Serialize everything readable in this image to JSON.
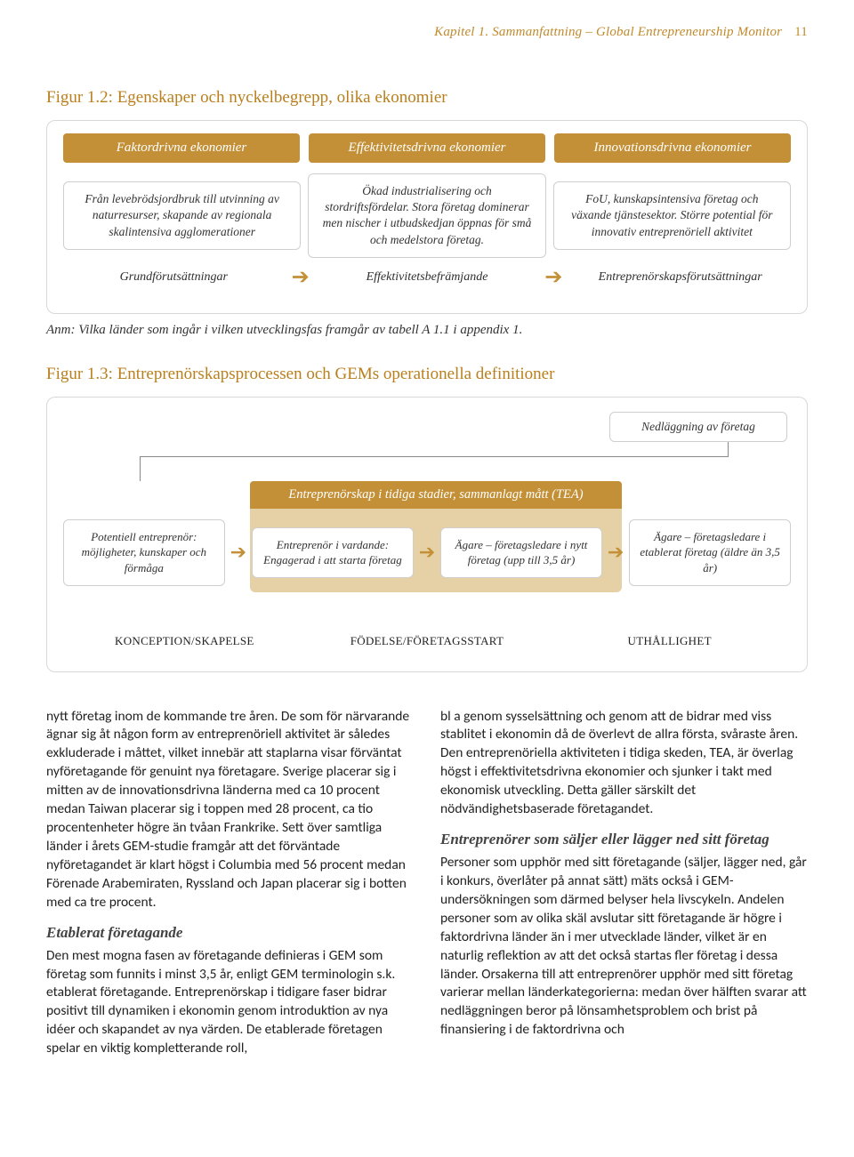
{
  "header": {
    "running": "Kapitel 1. Sammanfattning – Global Entrepreneurship Monitor",
    "page_number": "11"
  },
  "fig12": {
    "title": "Figur 1.2: Egenskaper och nyckelbegrepp, olika ekonomier",
    "columns": [
      "Faktordrivna ekonomier",
      "Effektivitetsdrivna ekonomier",
      "Innovationsdrivna ekonomier"
    ],
    "boxes": [
      "Från levebrödsjordbruk till utvinning av naturresurser, skapande av regionala skalintensiva agglomerationer",
      "Ökad industrialisering och stordriftsfördelar. Stora företag dominerar men nischer i utbudskedjan öppnas för små och medelstora företag.",
      "FoU, kunskapsintensiva företag och växande tjänstesektor. Större potential för innovativ entreprenöriell aktivitet"
    ],
    "labels": [
      "Grundförutsättningar",
      "Effektivitetsbefrämjande",
      "Entreprenörskapsförutsättningar"
    ]
  },
  "anm": "Anm: Vilka länder som ingår i vilken utvecklingsfas framgår av tabell A 1.1 i appendix 1.",
  "fig13": {
    "title": "Figur 1.3: Entreprenörskapsprocessen och GEMs operationella definitioner",
    "closure": "Nedläggning av företag",
    "tea_banner": "Entreprenörskap i tidiga stadier, sammanlagt mått (TEA)",
    "stages": [
      "Potentiell entreprenör:\nmöjligheter, kunskaper och förmåga",
      "Entreprenör i vardande:\nEngagerad i att starta företag",
      "Ägare – företagsledare i nytt företag (upp till 3,5 år)",
      "Ägare – företagsledare i etablerat företag (äldre än 3,5 år)"
    ],
    "phases": [
      "KONCEPTION/SKAPELSE",
      "FÖDELSE/FÖRETAGSSTART",
      "UTHÅLLIGHET"
    ]
  },
  "body": {
    "col1": {
      "p1": "nytt företag inom de kommande tre åren. De som för närvarande ägnar sig åt någon form av entreprenöriell aktivitet är således exkluderade i måttet, vilket innebär att staplarna visar förväntat nyföretagande för genuint nya företagare. Sverige placerar sig i mitten av de innovationsdrivna länderna med ca 10 procent medan Taiwan placerar sig i toppen med 28 procent, ca tio procentenheter högre än tvåan Frankrike. Sett över samtliga länder i årets GEM-studie framgår att det förväntade nyföretagandet är klart högst i Columbia med 56 procent medan Förenade Arabemiraten, Ryssland och Japan placerar sig i botten med ca tre procent.",
      "h1": "Etablerat företagande",
      "p2": "Den mest mogna fasen av företagande definieras i GEM som företag som funnits i minst 3,5 år, enligt GEM terminologin s.k. etablerat företagande. Entreprenörskap i tidigare faser bidrar positivt till dynamiken i ekonomin genom introduktion av nya idéer och skapandet av nya värden. De etablerade företagen spelar en viktig kompletterande roll,"
    },
    "col2": {
      "p1": "bl a genom sysselsättning och genom att de bidrar med viss stablitet i ekonomin då de överlevt de allra första, svåraste åren. Den entreprenöriella aktiviteten i tidiga skeden, TEA, är överlag högst i effektivitetsdrivna ekonomier och sjunker i takt med ekonomisk utveckling. Detta gäller särskilt det nödvändighetsbaserade företagandet.",
      "h1": "Entreprenörer som säljer eller lägger ned sitt företag",
      "p2": "Personer som upphör med sitt företagande (säljer, lägger ned, går i konkurs, överlåter på annat sätt) mäts också i GEM-undersökningen som därmed belyser hela livscykeln. Andelen personer som av olika skäl avslutar sitt företagande är högre i faktordrivna länder än i mer utvecklade länder, vilket är en naturlig reflektion av att det också startas fler företag i dessa länder. Orsakerna till att entreprenörer upphör med sitt företag varierar mellan länderkategorierna: medan över hälften svarar att nedläggningen beror på lönsamhetsproblem och brist på finansiering i de faktordrivna och"
    }
  },
  "colors": {
    "accent": "#b97f1d",
    "block": "#c39037",
    "tea_body": "#e6d1a6",
    "border": "#cfcfcf"
  }
}
